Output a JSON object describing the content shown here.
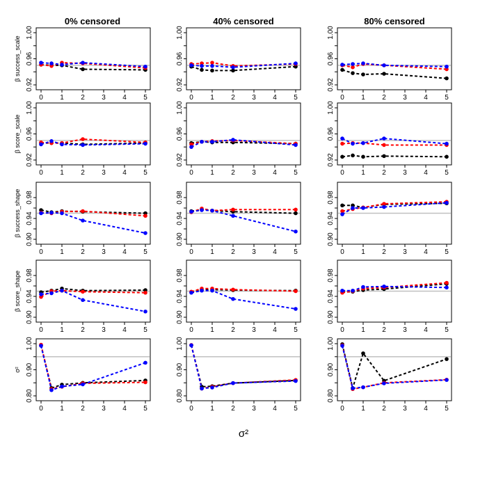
{
  "colors": {
    "black": "#000000",
    "red": "#ff0000",
    "blue": "#0000ff",
    "reference": "#c0c0c0"
  },
  "column_titles": [
    "0% censored",
    "40% censored",
    "80% censored"
  ],
  "row_ylabels": [
    "β success_scale",
    "β score_scale",
    "β success_shape",
    "β score_shape",
    "σ²"
  ],
  "x_axis_label": "σ²",
  "x_ticks": [
    "0",
    "1",
    "2",
    "3",
    "4",
    "5"
  ],
  "chart_data": [
    {
      "type": "line",
      "row": 0,
      "col": 0,
      "ylim": [
        0.92,
        1.0
      ],
      "yticks": [
        "0.92",
        "0.96",
        "1.00"
      ],
      "reference_y": 0.95,
      "xlim": [
        0,
        5
      ],
      "x": [
        0,
        0.5,
        1,
        2,
        5
      ],
      "series": [
        {
          "color": "black",
          "values": [
            0.951,
            0.95,
            0.95,
            0.944,
            0.943
          ]
        },
        {
          "color": "red",
          "values": [
            0.951,
            0.949,
            0.954,
            0.953,
            0.946
          ]
        },
        {
          "color": "blue",
          "values": [
            0.954,
            0.953,
            0.951,
            0.954,
            0.948
          ]
        }
      ]
    },
    {
      "type": "line",
      "row": 0,
      "col": 1,
      "ylim": [
        0.92,
        1.0
      ],
      "yticks": [
        "0.92",
        "0.96",
        "1.00"
      ],
      "reference_y": 0.95,
      "xlim": [
        0,
        5
      ],
      "x": [
        0,
        0.5,
        1,
        2,
        5
      ],
      "series": [
        {
          "color": "black",
          "values": [
            0.948,
            0.943,
            0.942,
            0.942,
            0.948
          ]
        },
        {
          "color": "red",
          "values": [
            0.952,
            0.953,
            0.954,
            0.949,
            0.952
          ]
        },
        {
          "color": "blue",
          "values": [
            0.95,
            0.949,
            0.949,
            0.947,
            0.953
          ]
        }
      ]
    },
    {
      "type": "line",
      "row": 0,
      "col": 2,
      "ylim": [
        0.92,
        1.0
      ],
      "yticks": [
        "0.92",
        "0.96",
        "1.00"
      ],
      "reference_y": 0.95,
      "xlim": [
        0,
        5
      ],
      "x": [
        0,
        0.5,
        1,
        2,
        5
      ],
      "series": [
        {
          "color": "black",
          "values": [
            0.943,
            0.938,
            0.936,
            0.937,
            0.93
          ]
        },
        {
          "color": "red",
          "values": [
            0.95,
            0.947,
            0.952,
            0.95,
            0.944
          ]
        },
        {
          "color": "blue",
          "values": [
            0.951,
            0.952,
            0.953,
            0.95,
            0.948
          ]
        }
      ]
    },
    {
      "type": "line",
      "row": 1,
      "col": 0,
      "ylim": [
        0.92,
        1.0
      ],
      "yticks": [
        "0.92",
        "0.96",
        "1.00"
      ],
      "reference_y": 0.95,
      "xlim": [
        0,
        5
      ],
      "x": [
        0,
        0.5,
        1,
        2,
        5
      ],
      "series": [
        {
          "color": "black",
          "values": [
            0.946,
            0.946,
            0.946,
            0.944,
            0.946
          ]
        },
        {
          "color": "red",
          "values": [
            0.947,
            0.946,
            0.946,
            0.952,
            0.947
          ]
        },
        {
          "color": "blue",
          "values": [
            0.944,
            0.949,
            0.944,
            0.943,
            0.945
          ]
        }
      ]
    },
    {
      "type": "line",
      "row": 1,
      "col": 1,
      "ylim": [
        0.92,
        1.0
      ],
      "yticks": [
        "0.92",
        "0.96",
        "1.00"
      ],
      "reference_y": 0.95,
      "xlim": [
        0,
        5
      ],
      "x": [
        0,
        0.5,
        1,
        2,
        5
      ],
      "series": [
        {
          "color": "black",
          "values": [
            0.946,
            0.948,
            0.947,
            0.947,
            0.945
          ]
        },
        {
          "color": "red",
          "values": [
            0.944,
            0.948,
            0.949,
            0.95,
            0.945
          ]
        },
        {
          "color": "blue",
          "values": [
            0.94,
            0.948,
            0.948,
            0.951,
            0.943
          ]
        }
      ]
    },
    {
      "type": "line",
      "row": 1,
      "col": 2,
      "ylim": [
        0.92,
        1.0
      ],
      "yticks": [
        "0.92",
        "0.96",
        "1.00"
      ],
      "reference_y": 0.95,
      "xlim": [
        0,
        5
      ],
      "x": [
        0,
        0.5,
        1,
        2,
        5
      ],
      "series": [
        {
          "color": "black",
          "values": [
            0.925,
            0.927,
            0.925,
            0.926,
            0.925
          ]
        },
        {
          "color": "red",
          "values": [
            0.945,
            0.946,
            0.946,
            0.943,
            0.943
          ]
        },
        {
          "color": "blue",
          "values": [
            0.953,
            0.945,
            0.946,
            0.953,
            0.945
          ]
        }
      ]
    },
    {
      "type": "line",
      "row": 2,
      "col": 0,
      "ylim": [
        0.9,
        1.0
      ],
      "yticks": [
        "0.90",
        "0.94",
        "0.98"
      ],
      "reference_y": 0.95,
      "xlim": [
        0,
        5
      ],
      "x": [
        0,
        0.5,
        1,
        2,
        5
      ],
      "series": [
        {
          "color": "black",
          "values": [
            0.956,
            0.952,
            0.954,
            0.953,
            0.95
          ]
        },
        {
          "color": "red",
          "values": [
            0.951,
            0.95,
            0.953,
            0.954,
            0.945
          ]
        },
        {
          "color": "blue",
          "values": [
            0.95,
            0.951,
            0.95,
            0.936,
            0.912
          ]
        }
      ]
    },
    {
      "type": "line",
      "row": 2,
      "col": 1,
      "ylim": [
        0.9,
        1.0
      ],
      "yticks": [
        "0.90",
        "0.94",
        "0.98"
      ],
      "reference_y": 0.95,
      "xlim": [
        0,
        5
      ],
      "x": [
        0,
        0.5,
        1,
        2,
        5
      ],
      "series": [
        {
          "color": "black",
          "values": [
            0.954,
            0.957,
            0.955,
            0.953,
            0.95
          ]
        },
        {
          "color": "red",
          "values": [
            0.952,
            0.959,
            0.955,
            0.957,
            0.957
          ]
        },
        {
          "color": "blue",
          "values": [
            0.953,
            0.956,
            0.955,
            0.945,
            0.915
          ]
        }
      ]
    },
    {
      "type": "line",
      "row": 2,
      "col": 2,
      "ylim": [
        0.9,
        1.0
      ],
      "yticks": [
        "0.90",
        "0.94",
        "0.98"
      ],
      "reference_y": 0.95,
      "xlim": [
        0,
        5
      ],
      "x": [
        0,
        0.5,
        1,
        2,
        5
      ],
      "series": [
        {
          "color": "black",
          "values": [
            0.965,
            0.965,
            0.961,
            0.967,
            0.969
          ]
        },
        {
          "color": "red",
          "values": [
            0.954,
            0.958,
            0.961,
            0.968,
            0.972
          ]
        },
        {
          "color": "blue",
          "values": [
            0.948,
            0.96,
            0.96,
            0.962,
            0.97
          ]
        }
      ]
    },
    {
      "type": "line",
      "row": 3,
      "col": 0,
      "ylim": [
        0.9,
        1.0
      ],
      "yticks": [
        "0.90",
        "0.94",
        "0.98"
      ],
      "reference_y": 0.95,
      "xlim": [
        0,
        5
      ],
      "x": [
        0,
        0.5,
        1,
        2,
        5
      ],
      "series": [
        {
          "color": "black",
          "values": [
            0.948,
            0.951,
            0.955,
            0.951,
            0.952
          ]
        },
        {
          "color": "red",
          "values": [
            0.939,
            0.95,
            0.951,
            0.949,
            0.947
          ]
        },
        {
          "color": "blue",
          "values": [
            0.944,
            0.946,
            0.951,
            0.933,
            0.911
          ]
        }
      ]
    },
    {
      "type": "line",
      "row": 3,
      "col": 1,
      "ylim": [
        0.9,
        1.0
      ],
      "yticks": [
        "0.90",
        "0.94",
        "0.98"
      ],
      "reference_y": 0.95,
      "xlim": [
        0,
        5
      ],
      "x": [
        0,
        0.5,
        1,
        2,
        5
      ],
      "series": [
        {
          "color": "black",
          "values": [
            0.948,
            0.953,
            0.953,
            0.952,
            0.951
          ]
        },
        {
          "color": "red",
          "values": [
            0.949,
            0.955,
            0.955,
            0.953,
            0.95
          ]
        },
        {
          "color": "blue",
          "values": [
            0.947,
            0.951,
            0.951,
            0.935,
            0.916
          ]
        }
      ]
    },
    {
      "type": "line",
      "row": 3,
      "col": 2,
      "ylim": [
        0.9,
        1.0
      ],
      "yticks": [
        "0.90",
        "0.94",
        "0.98"
      ],
      "reference_y": 0.95,
      "xlim": [
        0,
        5
      ],
      "x": [
        0,
        0.5,
        1,
        2,
        5
      ],
      "series": [
        {
          "color": "black",
          "values": [
            0.948,
            0.949,
            0.952,
            0.954,
            0.964
          ]
        },
        {
          "color": "red",
          "values": [
            0.947,
            0.95,
            0.955,
            0.957,
            0.966
          ]
        },
        {
          "color": "blue",
          "values": [
            0.951,
            0.951,
            0.958,
            0.959,
            0.957
          ]
        }
      ]
    },
    {
      "type": "line",
      "row": 4,
      "col": 0,
      "ylim": [
        0.8,
        1.0
      ],
      "yticks": [
        "0.80",
        "0.90",
        "1.00"
      ],
      "reference_y": 0.95,
      "xlim": [
        0,
        5
      ],
      "x": [
        0,
        0.5,
        1,
        2,
        5
      ],
      "series": [
        {
          "color": "black",
          "values": [
            0.993,
            0.83,
            0.843,
            0.85,
            0.859
          ]
        },
        {
          "color": "red",
          "values": [
            0.996,
            0.826,
            0.835,
            0.848,
            0.852
          ]
        },
        {
          "color": "blue",
          "values": [
            0.992,
            0.822,
            0.836,
            0.844,
            0.927
          ]
        }
      ]
    },
    {
      "type": "line",
      "row": 4,
      "col": 1,
      "ylim": [
        0.8,
        1.0
      ],
      "yticks": [
        "0.80",
        "0.90",
        "1.00"
      ],
      "reference_y": 0.95,
      "xlim": [
        0,
        5
      ],
      "x": [
        0,
        0.5,
        1,
        2,
        5
      ],
      "series": [
        {
          "color": "black",
          "values": [
            0.994,
            0.835,
            0.837,
            0.849,
            0.859
          ]
        },
        {
          "color": "red",
          "values": [
            0.995,
            0.828,
            0.835,
            0.849,
            0.861
          ]
        },
        {
          "color": "blue",
          "values": [
            0.994,
            0.828,
            0.832,
            0.849,
            0.857
          ]
        }
      ]
    },
    {
      "type": "line",
      "row": 4,
      "col": 2,
      "ylim": [
        0.8,
        1.0
      ],
      "yticks": [
        "0.80",
        "0.90",
        "1.00"
      ],
      "reference_y": 0.95,
      "xlim": [
        0,
        5
      ],
      "x": [
        0,
        0.5,
        1,
        2,
        5
      ],
      "series": [
        {
          "color": "black",
          "values": [
            0.998,
            0.83,
            0.963,
            0.858,
            0.941
          ]
        },
        {
          "color": "red",
          "values": [
            0.994,
            0.826,
            0.833,
            0.85,
            0.862
          ]
        },
        {
          "color": "blue",
          "values": [
            0.992,
            0.829,
            0.833,
            0.848,
            0.861
          ]
        }
      ]
    }
  ]
}
